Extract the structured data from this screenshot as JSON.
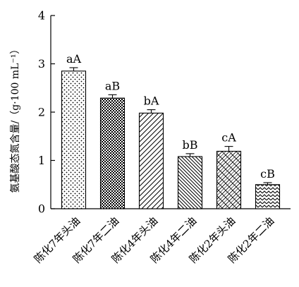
{
  "chart_data": {
    "type": "bar",
    "ylabel": "氨基酸态氮含量/（g·100 mL⁻¹）",
    "ylim": [
      0,
      4
    ],
    "yticks": [
      0,
      1,
      2,
      3,
      4
    ],
    "categories": [
      "陈化7年头油",
      "陈化7年二油",
      "陈化4年头油",
      "陈化4年二油",
      "陈化2年头油",
      "陈化2年二油"
    ],
    "values": [
      2.85,
      2.29,
      1.98,
      1.08,
      1.19,
      0.5
    ],
    "errors": [
      0.07,
      0.07,
      0.07,
      0.06,
      0.1,
      0.04
    ],
    "significance": [
      "aA",
      "aB",
      "bA",
      "bB",
      "cA",
      "cB"
    ],
    "patterns": [
      "dots",
      "checker",
      "diag-fwd",
      "diag-back",
      "weave",
      "zigzag"
    ],
    "grid": false,
    "legend": "none"
  }
}
